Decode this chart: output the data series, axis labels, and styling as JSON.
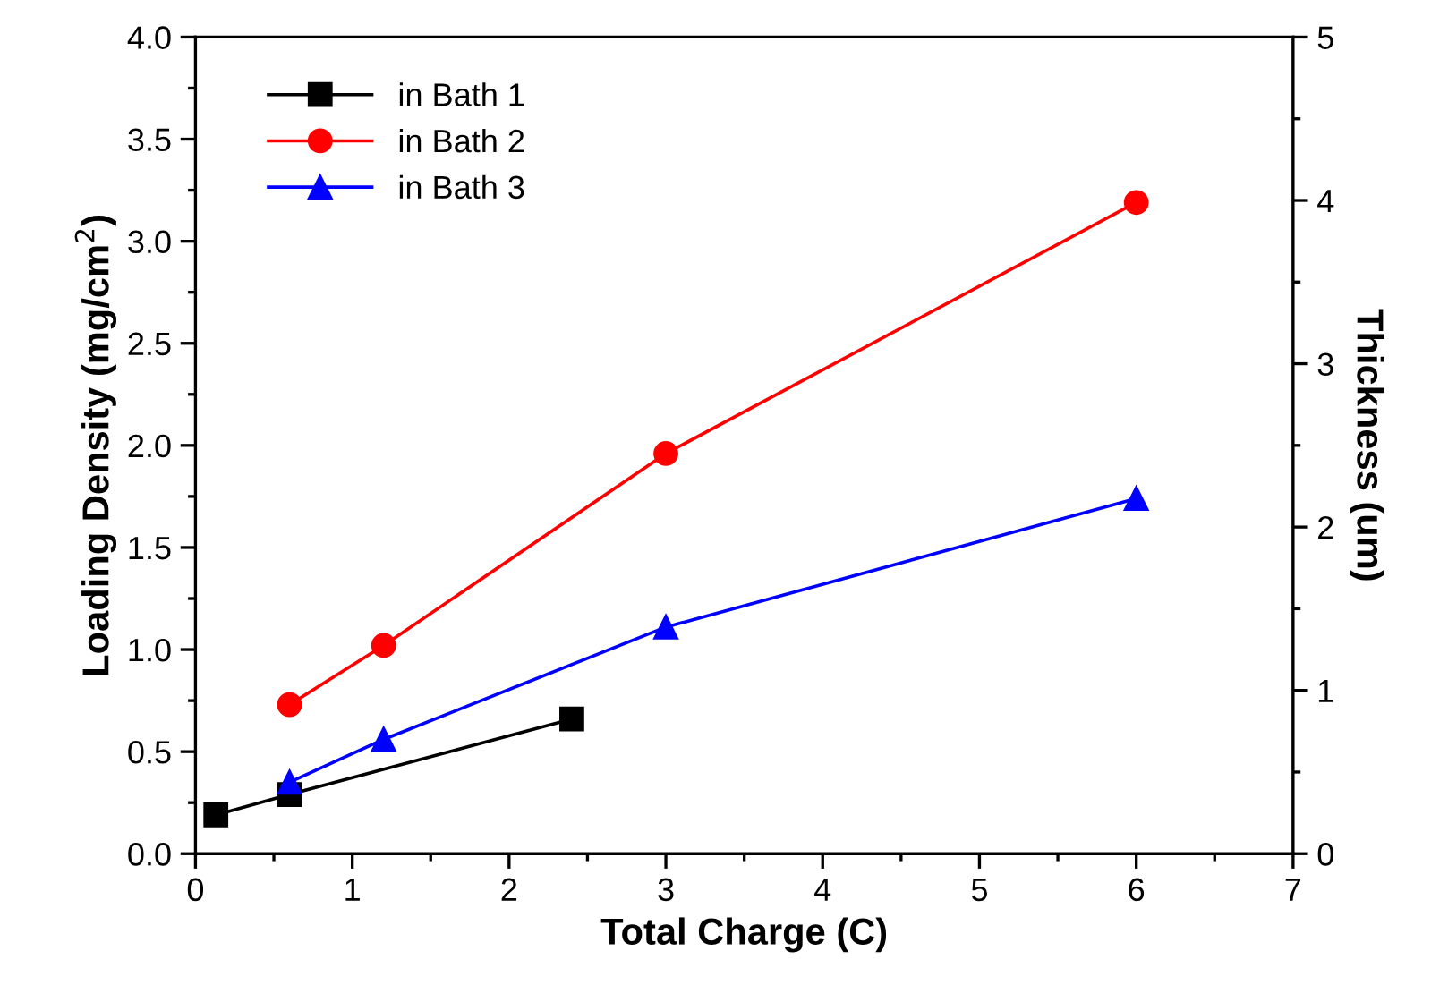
{
  "chart_data": {
    "type": "line",
    "xlabel": "Total Charge (C)",
    "ylabel": "Loading Density (mg/cm$^{2}$)",
    "y2label": "Thickness (um)",
    "xlim": [
      0,
      7
    ],
    "xticks": [
      0,
      1,
      2,
      3,
      4,
      5,
      6,
      7
    ],
    "ylim": [
      0,
      4
    ],
    "yticks": [
      {
        "value": 0,
        "label": "0.0"
      },
      0.5,
      {
        "value": 1,
        "label": "1.0"
      },
      1.5,
      {
        "value": 2,
        "label": "2.0"
      },
      2.5,
      {
        "value": 3,
        "label": "3.0"
      },
      3.5,
      {
        "value": 4,
        "label": "4.0"
      }
    ],
    "y2lim": [
      0,
      5
    ],
    "y2ticks": [
      0,
      1,
      2,
      3,
      4,
      5
    ],
    "legend": "top left",
    "series": [
      {
        "name": "in Bath 1",
        "color": "#000000",
        "marker": "square",
        "x": [
          0.13,
          0.6,
          2.4
        ],
        "values": [
          0.19,
          0.29,
          0.66
        ]
      },
      {
        "name": "in Bath 2",
        "color": "#ff0000",
        "marker": "circle",
        "x": [
          0.6,
          1.2,
          3,
          6
        ],
        "values": [
          0.73,
          1.02,
          1.96,
          3.19
        ]
      },
      {
        "name": "in Bath 3",
        "color": "#0000ff",
        "marker": "triangle",
        "x": [
          0.6,
          1.2,
          3,
          6
        ],
        "values": [
          0.35,
          0.56,
          1.11,
          1.74
        ]
      }
    ]
  }
}
